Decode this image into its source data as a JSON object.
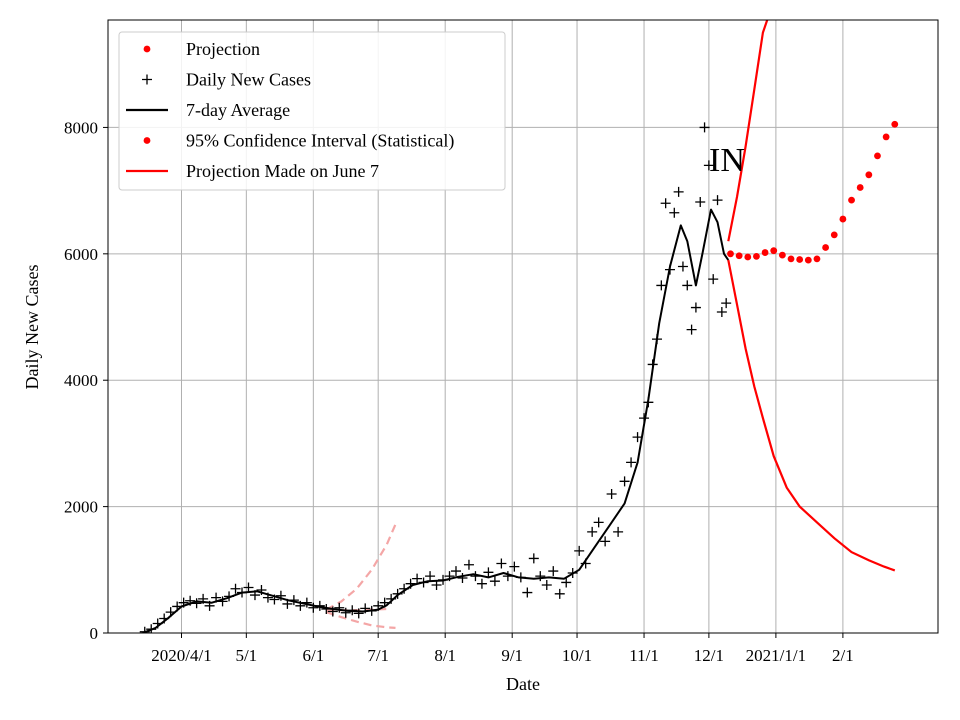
{
  "chart_data": {
    "type": "line",
    "title": "",
    "annotation": "IN",
    "xlabel": "Date",
    "ylabel": "Daily New Cases",
    "xlim": [
      "2020-02-27",
      "2021-03-17"
    ],
    "ylim": [
      0,
      9700
    ],
    "grid": true,
    "legend_position": "top-left",
    "x_ticks": [
      {
        "date": "2020-04-01",
        "label": "2020/4/1"
      },
      {
        "date": "2020-05-01",
        "label": "5/1"
      },
      {
        "date": "2020-06-01",
        "label": "6/1"
      },
      {
        "date": "2020-07-01",
        "label": "7/1"
      },
      {
        "date": "2020-08-01",
        "label": "8/1"
      },
      {
        "date": "2020-09-01",
        "label": "9/1"
      },
      {
        "date": "2020-10-01",
        "label": "10/1"
      },
      {
        "date": "2020-11-01",
        "label": "11/1"
      },
      {
        "date": "2020-12-01",
        "label": "12/1"
      },
      {
        "date": "2021-01-01",
        "label": "2021/1/1"
      },
      {
        "date": "2021-02-01",
        "label": "2/1"
      }
    ],
    "y_ticks": [
      {
        "value": 0,
        "label": "0"
      },
      {
        "value": 2000,
        "label": "2000"
      },
      {
        "value": 4000,
        "label": "4000"
      },
      {
        "value": 6000,
        "label": "6000"
      },
      {
        "value": 8000,
        "label": "8000"
      }
    ],
    "legend": [
      {
        "label": "Projection",
        "marker": "dot",
        "color": "#ff0000"
      },
      {
        "label": "Daily New Cases",
        "marker": "plus",
        "color": "#000000"
      },
      {
        "label": "7-day Average",
        "marker": "line",
        "color": "#000000"
      },
      {
        "label": "95% Confidence Interval (Statistical)",
        "marker": "dot",
        "color": "#ff0000"
      },
      {
        "label": "Projection Made on June 7",
        "marker": "line",
        "color": "#ff0000"
      }
    ],
    "series": [
      {
        "name": "Daily New Cases",
        "style": "plus",
        "color": "#000000",
        "points": [
          [
            "2020-03-15",
            20
          ],
          [
            "2020-03-18",
            60
          ],
          [
            "2020-03-21",
            150
          ],
          [
            "2020-03-24",
            230
          ],
          [
            "2020-03-27",
            330
          ],
          [
            "2020-03-30",
            420
          ],
          [
            "2020-04-02",
            480
          ],
          [
            "2020-04-05",
            510
          ],
          [
            "2020-04-08",
            470
          ],
          [
            "2020-04-11",
            540
          ],
          [
            "2020-04-14",
            430
          ],
          [
            "2020-04-17",
            560
          ],
          [
            "2020-04-20",
            500
          ],
          [
            "2020-04-23",
            580
          ],
          [
            "2020-04-26",
            700
          ],
          [
            "2020-04-29",
            640
          ],
          [
            "2020-05-02",
            720
          ],
          [
            "2020-05-05",
            600
          ],
          [
            "2020-05-08",
            680
          ],
          [
            "2020-05-11",
            560
          ],
          [
            "2020-05-14",
            530
          ],
          [
            "2020-05-17",
            590
          ],
          [
            "2020-05-20",
            460
          ],
          [
            "2020-05-23",
            520
          ],
          [
            "2020-05-26",
            430
          ],
          [
            "2020-05-29",
            480
          ],
          [
            "2020-06-01",
            400
          ],
          [
            "2020-06-04",
            430
          ],
          [
            "2020-06-07",
            380
          ],
          [
            "2020-06-10",
            340
          ],
          [
            "2020-06-13",
            400
          ],
          [
            "2020-06-16",
            320
          ],
          [
            "2020-06-19",
            360
          ],
          [
            "2020-06-22",
            310
          ],
          [
            "2020-06-25",
            390
          ],
          [
            "2020-06-28",
            350
          ],
          [
            "2020-07-01",
            430
          ],
          [
            "2020-07-04",
            480
          ],
          [
            "2020-07-07",
            540
          ],
          [
            "2020-07-10",
            620
          ],
          [
            "2020-07-13",
            700
          ],
          [
            "2020-07-16",
            780
          ],
          [
            "2020-07-19",
            860
          ],
          [
            "2020-07-22",
            800
          ],
          [
            "2020-07-25",
            900
          ],
          [
            "2020-07-28",
            760
          ],
          [
            "2020-07-31",
            840
          ],
          [
            "2020-08-03",
            900
          ],
          [
            "2020-08-06",
            980
          ],
          [
            "2020-08-09",
            870
          ],
          [
            "2020-08-12",
            1080
          ],
          [
            "2020-08-15",
            900
          ],
          [
            "2020-08-18",
            780
          ],
          [
            "2020-08-21",
            960
          ],
          [
            "2020-08-24",
            820
          ],
          [
            "2020-08-27",
            1100
          ],
          [
            "2020-08-30",
            900
          ],
          [
            "2020-09-02",
            1050
          ],
          [
            "2020-09-05",
            880
          ],
          [
            "2020-09-08",
            640
          ],
          [
            "2020-09-11",
            1180
          ],
          [
            "2020-09-14",
            900
          ],
          [
            "2020-09-17",
            760
          ],
          [
            "2020-09-20",
            980
          ],
          [
            "2020-09-23",
            620
          ],
          [
            "2020-09-26",
            800
          ],
          [
            "2020-09-29",
            950
          ],
          [
            "2020-10-02",
            1300
          ],
          [
            "2020-10-05",
            1100
          ],
          [
            "2020-10-08",
            1600
          ],
          [
            "2020-10-11",
            1750
          ],
          [
            "2020-10-14",
            1450
          ],
          [
            "2020-10-17",
            2200
          ],
          [
            "2020-10-20",
            1600
          ],
          [
            "2020-10-23",
            2400
          ],
          [
            "2020-10-26",
            2700
          ],
          [
            "2020-10-29",
            3100
          ],
          [
            "2020-11-01",
            3400
          ],
          [
            "2020-11-03",
            3650
          ],
          [
            "2020-11-05",
            4250
          ],
          [
            "2020-11-07",
            4650
          ],
          [
            "2020-11-09",
            5500
          ],
          [
            "2020-11-11",
            6800
          ],
          [
            "2020-11-13",
            5750
          ],
          [
            "2020-11-15",
            6650
          ],
          [
            "2020-11-17",
            6980
          ],
          [
            "2020-11-19",
            5800
          ],
          [
            "2020-11-21",
            5500
          ],
          [
            "2020-11-23",
            4800
          ],
          [
            "2020-11-25",
            5150
          ],
          [
            "2020-11-27",
            6820
          ],
          [
            "2020-11-29",
            8000
          ],
          [
            "2020-12-01",
            7400
          ],
          [
            "2020-12-03",
            5600
          ],
          [
            "2020-12-05",
            6850
          ],
          [
            "2020-12-07",
            5080
          ],
          [
            "2020-12-09",
            5220
          ]
        ]
      },
      {
        "name": "7-day Average",
        "style": "line",
        "color": "#000000",
        "points": [
          [
            "2020-03-14",
            0
          ],
          [
            "2020-03-20",
            80
          ],
          [
            "2020-03-26",
            240
          ],
          [
            "2020-04-01",
            420
          ],
          [
            "2020-04-08",
            500
          ],
          [
            "2020-04-15",
            480
          ],
          [
            "2020-04-22",
            550
          ],
          [
            "2020-04-29",
            640
          ],
          [
            "2020-05-06",
            660
          ],
          [
            "2020-05-13",
            590
          ],
          [
            "2020-05-20",
            520
          ],
          [
            "2020-05-27",
            470
          ],
          [
            "2020-06-03",
            420
          ],
          [
            "2020-06-10",
            380
          ],
          [
            "2020-06-17",
            350
          ],
          [
            "2020-06-24",
            340
          ],
          [
            "2020-07-01",
            370
          ],
          [
            "2020-07-05",
            440
          ],
          [
            "2020-07-10",
            600
          ],
          [
            "2020-07-17",
            760
          ],
          [
            "2020-07-24",
            820
          ],
          [
            "2020-07-31",
            830
          ],
          [
            "2020-08-07",
            890
          ],
          [
            "2020-08-14",
            930
          ],
          [
            "2020-08-21",
            880
          ],
          [
            "2020-08-28",
            950
          ],
          [
            "2020-09-04",
            880
          ],
          [
            "2020-09-11",
            860
          ],
          [
            "2020-09-18",
            880
          ],
          [
            "2020-09-25",
            860
          ],
          [
            "2020-10-02",
            1000
          ],
          [
            "2020-10-09",
            1350
          ],
          [
            "2020-10-16",
            1700
          ],
          [
            "2020-10-23",
            2050
          ],
          [
            "2020-10-29",
            2700
          ],
          [
            "2020-11-03",
            3700
          ],
          [
            "2020-11-08",
            4900
          ],
          [
            "2020-11-13",
            5800
          ],
          [
            "2020-11-18",
            6450
          ],
          [
            "2020-11-21",
            6200
          ],
          [
            "2020-11-25",
            5500
          ],
          [
            "2020-11-28",
            6000
          ],
          [
            "2020-12-02",
            6700
          ],
          [
            "2020-12-05",
            6500
          ],
          [
            "2020-12-08",
            6000
          ],
          [
            "2020-12-10",
            5900
          ]
        ]
      },
      {
        "name": "Projection",
        "style": "dot",
        "color": "#ff0000",
        "points": [
          [
            "2020-12-11",
            6000
          ],
          [
            "2020-12-15",
            5970
          ],
          [
            "2020-12-19",
            5950
          ],
          [
            "2020-12-23",
            5960
          ],
          [
            "2020-12-27",
            6020
          ],
          [
            "2020-12-31",
            6050
          ],
          [
            "2021-01-04",
            5980
          ],
          [
            "2021-01-08",
            5920
          ],
          [
            "2021-01-12",
            5910
          ],
          [
            "2021-01-16",
            5900
          ],
          [
            "2021-01-20",
            5920
          ],
          [
            "2021-01-24",
            6100
          ],
          [
            "2021-01-28",
            6300
          ],
          [
            "2021-02-01",
            6550
          ],
          [
            "2021-02-05",
            6850
          ],
          [
            "2021-02-09",
            7050
          ],
          [
            "2021-02-13",
            7250
          ],
          [
            "2021-02-17",
            7550
          ],
          [
            "2021-02-21",
            7850
          ],
          [
            "2021-02-25",
            8050
          ]
        ]
      },
      {
        "name": "95% Confidence Interval (Statistical)",
        "style": "line",
        "color": "#ff0000",
        "upper": [
          [
            "2020-12-10",
            6200
          ],
          [
            "2020-12-14",
            6900
          ],
          [
            "2020-12-18",
            7700
          ],
          [
            "2020-12-22",
            8600
          ],
          [
            "2020-12-26",
            9500
          ],
          [
            "2020-12-28",
            9700
          ]
        ],
        "lower": [
          [
            "2020-12-10",
            5900
          ],
          [
            "2020-12-14",
            5200
          ],
          [
            "2020-12-18",
            4500
          ],
          [
            "2020-12-22",
            3900
          ],
          [
            "2020-12-26",
            3400
          ],
          [
            "2020-12-31",
            2800
          ],
          [
            "2021-01-06",
            2300
          ],
          [
            "2021-01-12",
            2000
          ],
          [
            "2021-01-20",
            1750
          ],
          [
            "2021-01-28",
            1500
          ],
          [
            "2021-02-05",
            1280
          ],
          [
            "2021-02-13",
            1150
          ],
          [
            "2021-02-20",
            1050
          ],
          [
            "2021-02-25",
            990
          ]
        ]
      },
      {
        "name": "Projection Made on June 7",
        "style": "dashed",
        "color": "#f4a6a6",
        "points": [
          [
            "2020-06-07",
            350
          ],
          [
            "2020-06-14",
            360
          ],
          [
            "2020-06-21",
            360
          ],
          [
            "2020-06-28",
            370
          ],
          [
            "2020-07-05",
            380
          ]
        ],
        "upper": [
          [
            "2020-06-07",
            370
          ],
          [
            "2020-06-14",
            500
          ],
          [
            "2020-06-21",
            700
          ],
          [
            "2020-06-28",
            1000
          ],
          [
            "2020-07-05",
            1400
          ],
          [
            "2020-07-09",
            1720
          ]
        ],
        "lower": [
          [
            "2020-06-07",
            330
          ],
          [
            "2020-06-14",
            250
          ],
          [
            "2020-06-21",
            180
          ],
          [
            "2020-06-28",
            120
          ],
          [
            "2020-07-05",
            90
          ],
          [
            "2020-07-09",
            80
          ]
        ]
      }
    ]
  }
}
